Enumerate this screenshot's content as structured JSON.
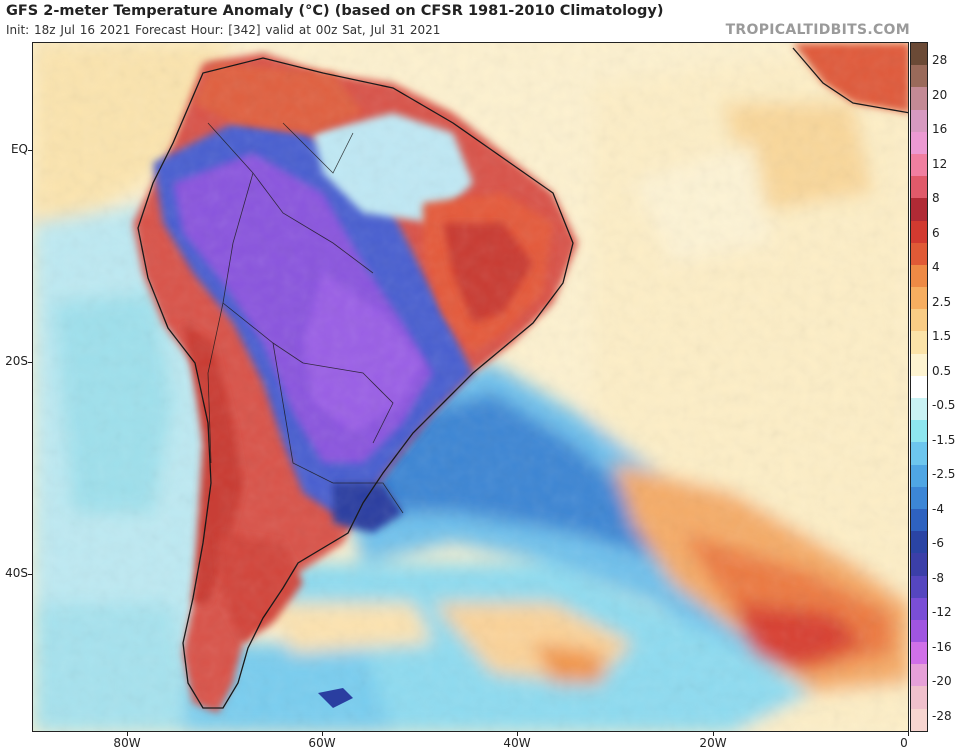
{
  "header": {
    "title": "GFS 2-meter Temperature Anomaly (°C) (based on CFSR 1981-2010 Climatology)",
    "subtitle": "Init: 18z Jul 16 2021   Forecast Hour: [342]   valid at 00z Sat, Jul 31 2021",
    "watermark": "TROPICALTIDBITS.COM"
  },
  "map": {
    "lat_labels": [
      "EQ",
      "20S",
      "40S"
    ],
    "lon_labels": [
      "80W",
      "60W",
      "40W",
      "20W",
      "0"
    ]
  },
  "colorbar": {
    "labels": [
      "28",
      "20",
      "16",
      "12",
      "8",
      "6",
      "4",
      "2.5",
      "1.5",
      "0.5",
      "-0.5",
      "-1.5",
      "-2.5",
      "-4",
      "-6",
      "-8",
      "-12",
      "-16",
      "-20",
      "-28"
    ],
    "colors": [
      "#6b4a36",
      "#9a6a5a",
      "#c48a95",
      "#d79ac0",
      "#ec9ad2",
      "#f07fa0",
      "#e05a6a",
      "#b02a35",
      "#d23a30",
      "#e05a36",
      "#ee8a45",
      "#f7ae60",
      "#f9cc85",
      "#fbe3a8",
      "#fdf3d0",
      "#ffffff",
      "#c9f2f4",
      "#8ee6ef",
      "#6dc6ee",
      "#4fa6e4",
      "#3c86d6",
      "#2e62bf",
      "#2a44a4",
      "#3b3fa8",
      "#5546bf",
      "#7a4ed6",
      "#a055e0",
      "#d070e8",
      "#e6a0d8",
      "#f0c0cc",
      "#f7d5d0"
    ]
  }
}
